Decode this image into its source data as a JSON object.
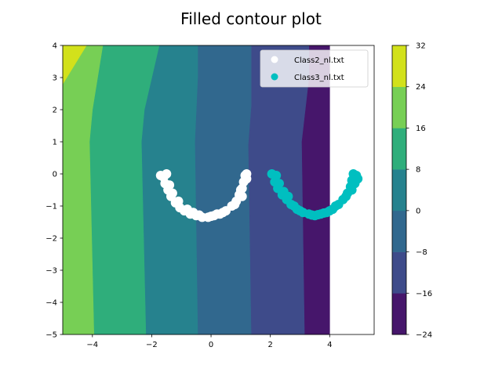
{
  "chart_data": {
    "type": "contour",
    "title": "Filled contour plot",
    "xlim": [
      -5,
      5.5
    ],
    "ylim": [
      -5,
      4
    ],
    "x_ticks": [
      -4,
      -2,
      0,
      2,
      4
    ],
    "x_tick_labels": [
      "−4",
      "−2",
      "0",
      "2",
      "4"
    ],
    "y_ticks": [
      4,
      3,
      2,
      1,
      0,
      -1,
      -2,
      -3,
      -4,
      -5
    ],
    "y_tick_labels": [
      "4",
      "3",
      "2",
      "1",
      "0",
      "−1",
      "−2",
      "−3",
      "−4",
      "−5"
    ],
    "colorbar": {
      "levels": [
        -24,
        -16,
        -8,
        0,
        8,
        16,
        24,
        32
      ],
      "tick_labels": [
        "−24",
        "−16",
        "−8",
        "0",
        "8",
        "16",
        "24",
        "32"
      ],
      "colors": [
        "#46166b",
        "#3e4b8a",
        "#31688e",
        "#26828e",
        "#2fae7b",
        "#77cf55",
        "#d2e11b"
      ]
    },
    "contour_data_xmax": 4,
    "contour_bands": [
      {
        "level": [
          -24,
          -16
        ],
        "color": "#46166b",
        "polygon": [
          [
            3.15,
            -5
          ],
          [
            4,
            -5
          ],
          [
            4,
            4
          ],
          [
            3.3,
            4
          ],
          [
            3.3,
            3.0
          ],
          [
            3.05,
            1.0
          ],
          [
            3.15,
            -5
          ]
        ]
      },
      {
        "level": [
          -16,
          -8
        ],
        "color": "#3e4b8a",
        "polygon": [
          [
            1.35,
            -5
          ],
          [
            3.15,
            -5
          ],
          [
            3.05,
            1.0
          ],
          [
            3.3,
            3.0
          ],
          [
            3.3,
            4
          ],
          [
            1.35,
            4
          ],
          [
            1.35,
            2.1
          ],
          [
            1.25,
            0.9
          ],
          [
            1.35,
            -5
          ]
        ]
      },
      {
        "level": [
          -8,
          0
        ],
        "color": "#31688e",
        "polygon": [
          [
            -0.45,
            -5
          ],
          [
            1.35,
            -5
          ],
          [
            1.25,
            0.9
          ],
          [
            1.35,
            2.1
          ],
          [
            1.35,
            4
          ],
          [
            -0.45,
            4
          ],
          [
            -0.45,
            3.0
          ],
          [
            -0.55,
            1.0
          ],
          [
            -0.45,
            -5
          ]
        ]
      },
      {
        "level": [
          0,
          8
        ],
        "color": "#26828e",
        "polygon": [
          [
            -2.2,
            -5
          ],
          [
            -0.45,
            -5
          ],
          [
            -0.55,
            1.0
          ],
          [
            -0.45,
            3.0
          ],
          [
            -0.45,
            4
          ],
          [
            -1.75,
            4
          ],
          [
            -2.25,
            2.0
          ],
          [
            -2.35,
            1.0
          ],
          [
            -2.2,
            -5
          ]
        ]
      },
      {
        "level": [
          8,
          16
        ],
        "color": "#2fae7b",
        "polygon": [
          [
            -3.95,
            -5
          ],
          [
            -2.2,
            -5
          ],
          [
            -2.35,
            1.0
          ],
          [
            -2.25,
            2.0
          ],
          [
            -1.75,
            4
          ],
          [
            -3.65,
            4
          ],
          [
            -4.0,
            2.0
          ],
          [
            -4.1,
            1.0
          ],
          [
            -3.95,
            -5
          ]
        ]
      },
      {
        "level": [
          16,
          24
        ],
        "color": "#77cf55",
        "polygon": [
          [
            -5,
            -5
          ],
          [
            -3.95,
            -5
          ],
          [
            -4.1,
            1.0
          ],
          [
            -4.0,
            2.0
          ],
          [
            -3.65,
            4
          ],
          [
            -4.2,
            4
          ],
          [
            -5,
            2.8
          ],
          [
            -5,
            -5
          ]
        ]
      },
      {
        "level": [
          24,
          32
        ],
        "color": "#d2e11b",
        "polygon": [
          [
            -5,
            2.8
          ],
          [
            -4.2,
            4
          ],
          [
            -5,
            4
          ]
        ]
      }
    ],
    "series": [
      {
        "name": "Class2_nl.txt",
        "color": "#ffffff",
        "points": [
          [
            -1.6,
            -0.1
          ],
          [
            -1.55,
            -0.3
          ],
          [
            -1.45,
            -0.5
          ],
          [
            -1.35,
            -0.7
          ],
          [
            -1.2,
            -0.9
          ],
          [
            -1.05,
            -1.05
          ],
          [
            -0.9,
            -1.15
          ],
          [
            -0.7,
            -1.25
          ],
          [
            -0.5,
            -1.3
          ],
          [
            -0.3,
            -1.35
          ],
          [
            -0.1,
            -1.35
          ],
          [
            0.1,
            -1.3
          ],
          [
            0.3,
            -1.25
          ],
          [
            0.5,
            -1.15
          ],
          [
            0.7,
            -1.0
          ],
          [
            0.85,
            -0.85
          ],
          [
            0.95,
            -0.65
          ],
          [
            1.05,
            -0.45
          ],
          [
            1.1,
            -0.25
          ],
          [
            1.15,
            -0.05
          ],
          [
            1.2,
            0.0
          ],
          [
            -1.5,
            0.0
          ],
          [
            -1.7,
            -0.05
          ],
          [
            -1.4,
            -0.35
          ],
          [
            -1.1,
            -0.85
          ],
          [
            -0.8,
            -1.1
          ],
          [
            -0.4,
            -1.28
          ],
          [
            0.0,
            -1.32
          ],
          [
            0.4,
            -1.2
          ],
          [
            0.8,
            -0.95
          ],
          [
            1.0,
            -0.5
          ],
          [
            1.2,
            -0.15
          ],
          [
            -0.6,
            -1.2
          ],
          [
            0.2,
            -1.25
          ],
          [
            -1.3,
            -0.6
          ],
          [
            1.05,
            -0.7
          ]
        ]
      },
      {
        "name": "Class3_nl.txt",
        "color": "#00bfc0",
        "points": [
          [
            2.05,
            0.0
          ],
          [
            2.2,
            -0.05
          ],
          [
            2.15,
            -0.25
          ],
          [
            2.25,
            -0.45
          ],
          [
            2.4,
            -0.65
          ],
          [
            2.55,
            -0.8
          ],
          [
            2.7,
            -0.95
          ],
          [
            2.9,
            -1.1
          ],
          [
            3.1,
            -1.2
          ],
          [
            3.3,
            -1.25
          ],
          [
            3.5,
            -1.3
          ],
          [
            3.7,
            -1.25
          ],
          [
            3.9,
            -1.2
          ],
          [
            4.1,
            -1.1
          ],
          [
            4.3,
            -0.95
          ],
          [
            4.45,
            -0.8
          ],
          [
            4.6,
            -0.6
          ],
          [
            4.7,
            -0.4
          ],
          [
            4.75,
            -0.2
          ],
          [
            4.8,
            0.0
          ],
          [
            4.9,
            -0.05
          ],
          [
            4.85,
            -0.3
          ],
          [
            2.3,
            -0.3
          ],
          [
            2.6,
            -0.7
          ],
          [
            3.0,
            -1.15
          ],
          [
            3.4,
            -1.28
          ],
          [
            3.8,
            -1.22
          ],
          [
            4.2,
            -1.0
          ],
          [
            4.55,
            -0.7
          ],
          [
            4.75,
            -0.5
          ],
          [
            2.45,
            -0.55
          ],
          [
            3.6,
            -1.27
          ],
          [
            4.0,
            -1.15
          ],
          [
            2.8,
            -1.0
          ],
          [
            4.95,
            -0.15
          ]
        ]
      }
    ],
    "legend": {
      "placement": "top-right",
      "entries": [
        "Class2_nl.txt",
        "Class3_nl.txt"
      ]
    }
  }
}
